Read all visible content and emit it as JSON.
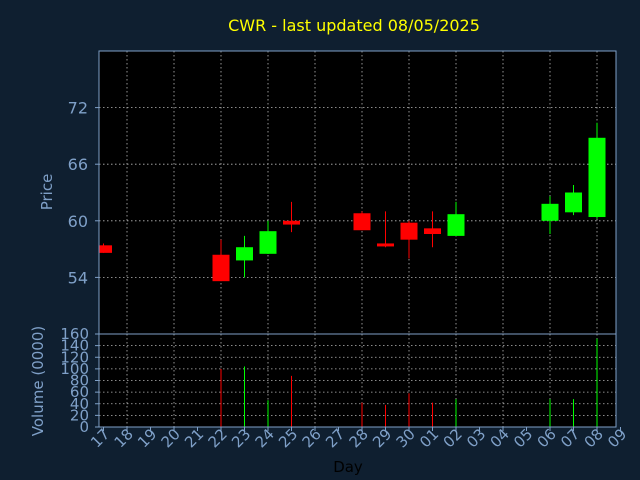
{
  "chart_data": {
    "type": "candlestick",
    "title": "CWR - last updated 08/05/2025",
    "xlabel": "Day",
    "price_panel": {
      "ylabel": "Price",
      "ylim": [
        48,
        78
      ],
      "yticks": [
        54,
        60,
        66,
        72
      ],
      "grid": true
    },
    "volume_panel": {
      "ylabel": "Volume (0000)",
      "ylim": [
        0,
        160
      ],
      "yticks": [
        0,
        20,
        40,
        60,
        80,
        100,
        120,
        140,
        160
      ],
      "grid": true
    },
    "categories": [
      "17",
      "18",
      "19",
      "20",
      "21",
      "22",
      "23",
      "24",
      "25",
      "26",
      "27",
      "28",
      "29",
      "30",
      "01",
      "02",
      "03",
      "04",
      "05",
      "06",
      "07",
      "08",
      "09"
    ],
    "candles": [
      {
        "day": "17",
        "open": 57.4,
        "high": 57.6,
        "low": 56.6,
        "close": 56.6,
        "volume": 0
      },
      {
        "day": "22",
        "open": 56.4,
        "high": 58.0,
        "low": 53.6,
        "close": 53.6,
        "volume": 100
      },
      {
        "day": "23",
        "open": 55.8,
        "high": 58.4,
        "low": 54.0,
        "close": 57.2,
        "volume": 104
      },
      {
        "day": "24",
        "open": 56.5,
        "high": 60.0,
        "low": 56.5,
        "close": 58.9,
        "volume": 46
      },
      {
        "day": "25",
        "open": 60.0,
        "high": 62.0,
        "low": 58.8,
        "close": 59.6,
        "volume": 88
      },
      {
        "day": "28",
        "open": 60.8,
        "high": 61.0,
        "low": 59.0,
        "close": 59.0,
        "volume": 42
      },
      {
        "day": "29",
        "open": 57.6,
        "high": 61.0,
        "low": 57.2,
        "close": 57.3,
        "volume": 38
      },
      {
        "day": "30",
        "open": 59.8,
        "high": 60.0,
        "low": 56.0,
        "close": 58.0,
        "volume": 58
      },
      {
        "day": "01",
        "open": 59.2,
        "high": 61.0,
        "low": 57.2,
        "close": 58.6,
        "volume": 42
      },
      {
        "day": "02",
        "open": 58.4,
        "high": 62.0,
        "low": 58.4,
        "close": 60.7,
        "volume": 48
      },
      {
        "day": "06",
        "open": 60.0,
        "high": 62.6,
        "low": 58.6,
        "close": 61.8,
        "volume": 48
      },
      {
        "day": "07",
        "open": 60.9,
        "high": 63.8,
        "low": 60.6,
        "close": 63.0,
        "volume": 48
      },
      {
        "day": "08",
        "open": 60.4,
        "high": 70.4,
        "low": 60.2,
        "close": 68.8,
        "volume": 152
      }
    ],
    "colors": {
      "background": "#0f1f30",
      "panel": "#000000",
      "axis": "#7fa0c8",
      "grid": "#b8b8b8",
      "up": "#00ff00",
      "down": "#ff0000",
      "title": "#ffff00"
    }
  }
}
